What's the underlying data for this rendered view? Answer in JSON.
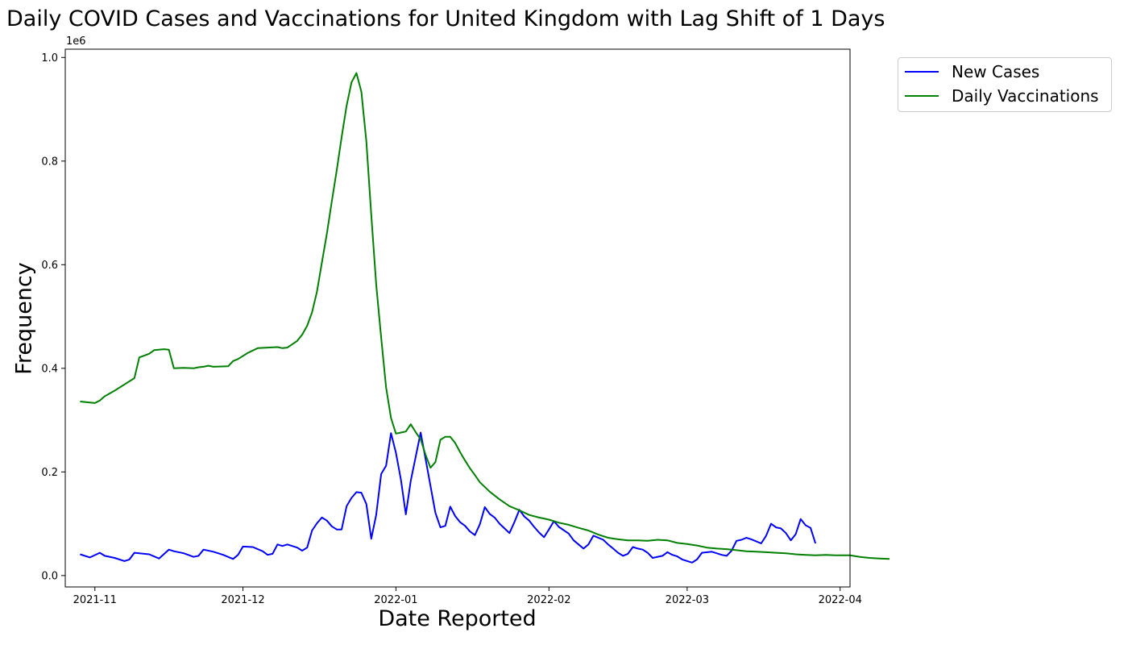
{
  "chart_data": {
    "type": "line",
    "title": "Daily COVID Cases and Vaccinations for United Kingdom with Lag Shift of 1 Days",
    "xlabel": "Date Reported",
    "ylabel": "Frequency",
    "y_offset_label": "1e6",
    "x_start_date": "2021-10-29",
    "x_end_date": "2022-03-27",
    "xlim": [
      "2021-10-26",
      "2022-04-03"
    ],
    "ylim": [
      -0.022,
      1.016
    ],
    "x_ticks": [
      "2021-11",
      "2021-12",
      "2022-01",
      "2022-02",
      "2022-03",
      "2022-04"
    ],
    "y_ticks": [
      "0.0",
      "0.2",
      "0.4",
      "0.6",
      "0.8",
      "1.0"
    ],
    "y_tick_values": [
      0.0,
      0.2,
      0.4,
      0.6,
      0.8,
      1.0
    ],
    "grid": false,
    "legend_position": "outside-top-right",
    "series": [
      {
        "name": "New Cases",
        "color": "#0000ff",
        "points": [
          [
            "2021-10-29",
            0.041
          ],
          [
            "2021-10-31",
            0.035
          ],
          [
            "2021-11-02",
            0.044
          ],
          [
            "2021-11-03",
            0.038
          ],
          [
            "2021-11-05",
            0.034
          ],
          [
            "2021-11-07",
            0.028
          ],
          [
            "2021-11-08",
            0.031
          ],
          [
            "2021-11-09",
            0.044
          ],
          [
            "2021-11-12",
            0.041
          ],
          [
            "2021-11-14",
            0.033
          ],
          [
            "2021-11-16",
            0.05
          ],
          [
            "2021-11-17",
            0.047
          ],
          [
            "2021-11-19",
            0.043
          ],
          [
            "2021-11-21",
            0.036
          ],
          [
            "2021-11-22",
            0.038
          ],
          [
            "2021-11-23",
            0.05
          ],
          [
            "2021-11-25",
            0.046
          ],
          [
            "2021-11-27",
            0.04
          ],
          [
            "2021-11-29",
            0.032
          ],
          [
            "2021-11-30",
            0.04
          ],
          [
            "2021-12-01",
            0.056
          ],
          [
            "2021-12-03",
            0.055
          ],
          [
            "2021-12-05",
            0.047
          ],
          [
            "2021-12-06",
            0.04
          ],
          [
            "2021-12-07",
            0.042
          ],
          [
            "2021-12-08",
            0.06
          ],
          [
            "2021-12-09",
            0.057
          ],
          [
            "2021-12-10",
            0.06
          ],
          [
            "2021-12-12",
            0.054
          ],
          [
            "2021-12-13",
            0.048
          ],
          [
            "2021-12-14",
            0.054
          ],
          [
            "2021-12-15",
            0.087
          ],
          [
            "2021-12-16",
            0.101
          ],
          [
            "2021-12-17",
            0.112
          ],
          [
            "2021-12-18",
            0.106
          ],
          [
            "2021-12-19",
            0.095
          ],
          [
            "2021-12-20",
            0.089
          ],
          [
            "2021-12-21",
            0.089
          ],
          [
            "2021-12-22",
            0.134
          ],
          [
            "2021-12-23",
            0.15
          ],
          [
            "2021-12-24",
            0.161
          ],
          [
            "2021-12-25",
            0.16
          ],
          [
            "2021-12-26",
            0.138
          ],
          [
            "2021-12-27",
            0.071
          ],
          [
            "2021-12-28",
            0.117
          ],
          [
            "2021-12-29",
            0.196
          ],
          [
            "2021-12-30",
            0.212
          ],
          [
            "2021-12-31",
            0.275
          ],
          [
            "2022-01-01",
            0.237
          ],
          [
            "2022-01-02",
            0.185
          ],
          [
            "2022-01-03",
            0.118
          ],
          [
            "2022-01-04",
            0.183
          ],
          [
            "2022-01-05",
            0.229
          ],
          [
            "2022-01-06",
            0.276
          ],
          [
            "2022-01-07",
            0.225
          ],
          [
            "2022-01-08",
            0.173
          ],
          [
            "2022-01-09",
            0.121
          ],
          [
            "2022-01-10",
            0.093
          ],
          [
            "2022-01-11",
            0.096
          ],
          [
            "2022-01-12",
            0.133
          ],
          [
            "2022-01-13",
            0.115
          ],
          [
            "2022-01-14",
            0.103
          ],
          [
            "2022-01-15",
            0.096
          ],
          [
            "2022-01-16",
            0.085
          ],
          [
            "2022-01-17",
            0.078
          ],
          [
            "2022-01-18",
            0.099
          ],
          [
            "2022-01-19",
            0.132
          ],
          [
            "2022-01-20",
            0.119
          ],
          [
            "2022-01-21",
            0.112
          ],
          [
            "2022-01-22",
            0.1
          ],
          [
            "2022-01-23",
            0.091
          ],
          [
            "2022-01-24",
            0.082
          ],
          [
            "2022-01-25",
            0.103
          ],
          [
            "2022-01-26",
            0.127
          ],
          [
            "2022-01-27",
            0.114
          ],
          [
            "2022-01-28",
            0.106
          ],
          [
            "2022-01-29",
            0.094
          ],
          [
            "2022-01-30",
            0.083
          ],
          [
            "2022-01-31",
            0.074
          ],
          [
            "2022-02-01",
            0.089
          ],
          [
            "2022-02-02",
            0.105
          ],
          [
            "2022-02-03",
            0.094
          ],
          [
            "2022-02-05",
            0.081
          ],
          [
            "2022-02-06",
            0.068
          ],
          [
            "2022-02-07",
            0.06
          ],
          [
            "2022-02-08",
            0.052
          ],
          [
            "2022-02-09",
            0.06
          ],
          [
            "2022-02-10",
            0.077
          ],
          [
            "2022-02-12",
            0.069
          ],
          [
            "2022-02-13",
            0.06
          ],
          [
            "2022-02-14",
            0.052
          ],
          [
            "2022-02-15",
            0.044
          ],
          [
            "2022-02-16",
            0.038
          ],
          [
            "2022-02-17",
            0.042
          ],
          [
            "2022-02-18",
            0.055
          ],
          [
            "2022-02-19",
            0.052
          ],
          [
            "2022-02-20",
            0.05
          ],
          [
            "2022-02-21",
            0.044
          ],
          [
            "2022-02-22",
            0.034
          ],
          [
            "2022-02-24",
            0.038
          ],
          [
            "2022-02-25",
            0.045
          ],
          [
            "2022-02-26",
            0.04
          ],
          [
            "2022-02-27",
            0.037
          ],
          [
            "2022-02-28",
            0.031
          ],
          [
            "2022-03-02",
            0.025
          ],
          [
            "2022-03-03",
            0.031
          ],
          [
            "2022-03-04",
            0.044
          ],
          [
            "2022-03-06",
            0.046
          ],
          [
            "2022-03-08",
            0.04
          ],
          [
            "2022-03-09",
            0.038
          ],
          [
            "2022-03-10",
            0.048
          ],
          [
            "2022-03-11",
            0.067
          ],
          [
            "2022-03-12",
            0.069
          ],
          [
            "2022-03-13",
            0.073
          ],
          [
            "2022-03-14",
            0.07
          ],
          [
            "2022-03-16",
            0.062
          ],
          [
            "2022-03-17",
            0.077
          ],
          [
            "2022-03-18",
            0.1
          ],
          [
            "2022-03-19",
            0.093
          ],
          [
            "2022-03-20",
            0.091
          ],
          [
            "2022-03-21",
            0.082
          ],
          [
            "2022-03-22",
            0.068
          ],
          [
            "2022-03-23",
            0.08
          ],
          [
            "2022-03-24",
            0.109
          ],
          [
            "2022-03-25",
            0.097
          ],
          [
            "2022-03-26",
            0.092
          ],
          [
            "2022-03-27",
            0.062
          ]
        ]
      },
      {
        "name": "Daily Vaccinations",
        "color": "#008000",
        "points": [
          [
            "2021-10-29",
            0.336
          ],
          [
            "2021-10-31",
            0.334
          ],
          [
            "2021-11-01",
            0.333
          ],
          [
            "2021-11-02",
            0.338
          ],
          [
            "2021-11-03",
            0.346
          ],
          [
            "2021-11-05",
            0.357
          ],
          [
            "2021-11-07",
            0.369
          ],
          [
            "2021-11-09",
            0.381
          ],
          [
            "2021-11-10",
            0.421
          ],
          [
            "2021-11-12",
            0.428
          ],
          [
            "2021-11-13",
            0.435
          ],
          [
            "2021-11-15",
            0.437
          ],
          [
            "2021-11-16",
            0.436
          ],
          [
            "2021-11-17",
            0.4
          ],
          [
            "2021-11-19",
            0.401
          ],
          [
            "2021-11-21",
            0.4
          ],
          [
            "2021-11-22",
            0.402
          ],
          [
            "2021-11-23",
            0.403
          ],
          [
            "2021-11-24",
            0.405
          ],
          [
            "2021-11-25",
            0.403
          ],
          [
            "2021-11-28",
            0.404
          ],
          [
            "2021-11-29",
            0.414
          ],
          [
            "2021-11-30",
            0.418
          ],
          [
            "2021-12-02",
            0.43
          ],
          [
            "2021-12-04",
            0.439
          ],
          [
            "2021-12-06",
            0.44
          ],
          [
            "2021-12-08",
            0.441
          ],
          [
            "2021-12-09",
            0.439
          ],
          [
            "2021-12-10",
            0.44
          ],
          [
            "2021-12-12",
            0.453
          ],
          [
            "2021-12-13",
            0.465
          ],
          [
            "2021-12-14",
            0.482
          ],
          [
            "2021-12-15",
            0.508
          ],
          [
            "2021-12-16",
            0.548
          ],
          [
            "2021-12-17",
            0.604
          ],
          [
            "2021-12-18",
            0.66
          ],
          [
            "2021-12-19",
            0.722
          ],
          [
            "2021-12-20",
            0.782
          ],
          [
            "2021-12-21",
            0.846
          ],
          [
            "2021-12-22",
            0.907
          ],
          [
            "2021-12-23",
            0.952
          ],
          [
            "2021-12-24",
            0.97
          ],
          [
            "2021-12-25",
            0.934
          ],
          [
            "2021-12-26",
            0.838
          ],
          [
            "2021-12-27",
            0.696
          ],
          [
            "2021-12-28",
            0.562
          ],
          [
            "2021-12-29",
            0.459
          ],
          [
            "2021-12-30",
            0.363
          ],
          [
            "2021-12-31",
            0.304
          ],
          [
            "2022-01-01",
            0.274
          ],
          [
            "2022-01-02",
            0.276
          ],
          [
            "2022-01-03",
            0.278
          ],
          [
            "2022-01-04",
            0.292
          ],
          [
            "2022-01-05",
            0.277
          ],
          [
            "2022-01-06",
            0.263
          ],
          [
            "2022-01-07",
            0.233
          ],
          [
            "2022-01-08",
            0.208
          ],
          [
            "2022-01-09",
            0.219
          ],
          [
            "2022-01-10",
            0.262
          ],
          [
            "2022-01-11",
            0.268
          ],
          [
            "2022-01-12",
            0.268
          ],
          [
            "2022-01-13",
            0.256
          ],
          [
            "2022-01-14",
            0.238
          ],
          [
            "2022-01-15",
            0.222
          ],
          [
            "2022-01-16",
            0.207
          ],
          [
            "2022-01-17",
            0.194
          ],
          [
            "2022-01-18",
            0.18
          ],
          [
            "2022-01-20",
            0.162
          ],
          [
            "2022-01-22",
            0.147
          ],
          [
            "2022-01-24",
            0.134
          ],
          [
            "2022-01-26",
            0.126
          ],
          [
            "2022-01-28",
            0.117
          ],
          [
            "2022-01-30",
            0.112
          ],
          [
            "2022-02-01",
            0.108
          ],
          [
            "2022-02-03",
            0.102
          ],
          [
            "2022-02-05",
            0.098
          ],
          [
            "2022-02-07",
            0.092
          ],
          [
            "2022-02-09",
            0.087
          ],
          [
            "2022-02-11",
            0.079
          ],
          [
            "2022-02-13",
            0.073
          ],
          [
            "2022-02-15",
            0.07
          ],
          [
            "2022-02-17",
            0.068
          ],
          [
            "2022-02-19",
            0.068
          ],
          [
            "2022-02-21",
            0.067
          ],
          [
            "2022-02-23",
            0.069
          ],
          [
            "2022-02-25",
            0.068
          ],
          [
            "2022-02-27",
            0.063
          ],
          [
            "2022-03-01",
            0.061
          ],
          [
            "2022-03-03",
            0.058
          ],
          [
            "2022-03-05",
            0.054
          ],
          [
            "2022-03-07",
            0.052
          ],
          [
            "2022-03-09",
            0.051
          ],
          [
            "2022-03-11",
            0.049
          ],
          [
            "2022-03-13",
            0.047
          ],
          [
            "2022-03-15",
            0.046
          ],
          [
            "2022-03-17",
            0.045
          ],
          [
            "2022-03-19",
            0.044
          ],
          [
            "2022-03-21",
            0.043
          ],
          [
            "2022-03-23",
            0.041
          ],
          [
            "2022-03-25",
            0.04
          ],
          [
            "2022-03-27",
            0.039
          ],
          [
            "2022-03-29",
            0.04
          ],
          [
            "2022-03-31",
            0.039
          ],
          [
            "2022-04-01",
            0.039
          ],
          [
            "2022-04-03",
            0.039
          ],
          [
            "2022-04-05",
            0.036
          ],
          [
            "2022-04-07",
            0.034
          ],
          [
            "2022-04-09",
            0.033
          ],
          [
            "2022-04-11",
            0.032
          ]
        ]
      }
    ]
  }
}
